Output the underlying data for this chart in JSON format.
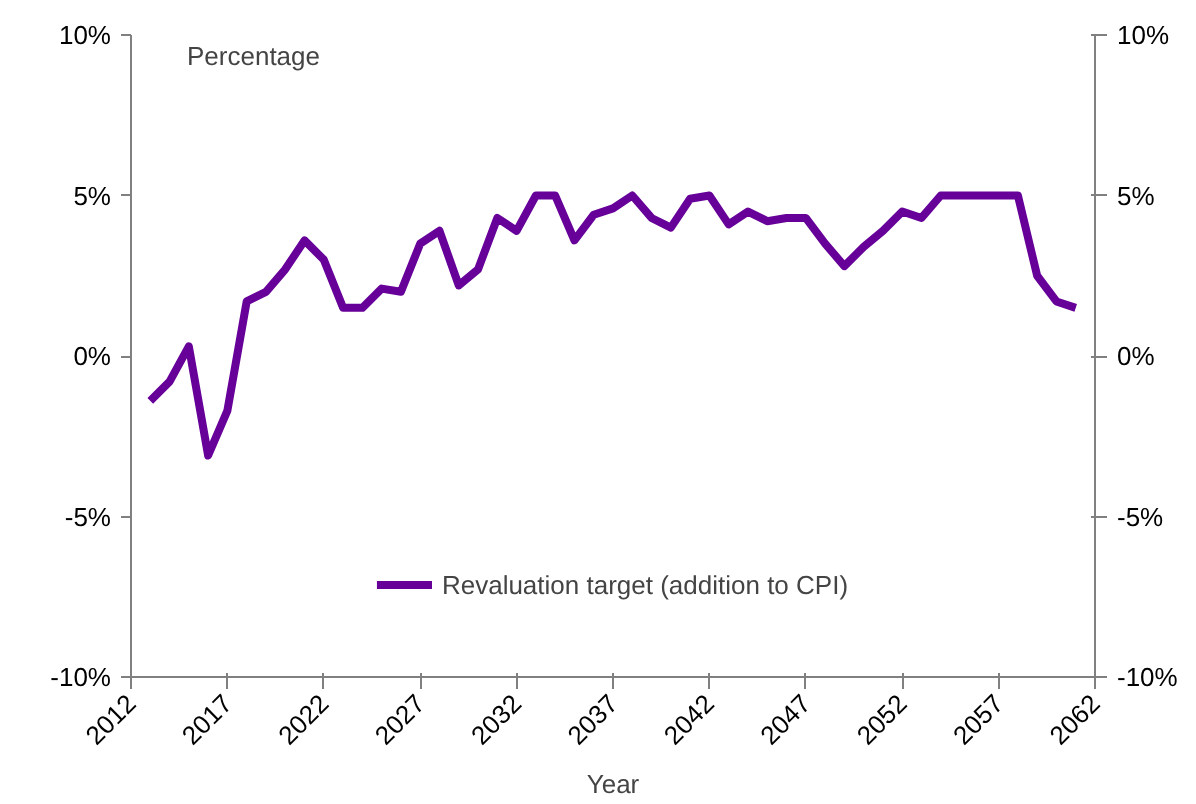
{
  "chart_data": {
    "type": "line",
    "ylabel": "Percentage",
    "xlabel": "Year",
    "x": [
      2013,
      2014,
      2015,
      2016,
      2017,
      2018,
      2019,
      2020,
      2021,
      2022,
      2023,
      2024,
      2025,
      2026,
      2027,
      2028,
      2029,
      2030,
      2031,
      2032,
      2033,
      2034,
      2035,
      2036,
      2037,
      2038,
      2039,
      2040,
      2041,
      2042,
      2043,
      2044,
      2045,
      2046,
      2047,
      2048,
      2049,
      2050,
      2051,
      2052,
      2053,
      2054,
      2055,
      2056,
      2057,
      2058,
      2059,
      2060,
      2061
    ],
    "series": [
      {
        "name": "Revaluation target (addition to CPI)",
        "color": "#660099",
        "values": [
          -1.4,
          -0.8,
          0.3,
          -3.1,
          -1.7,
          1.7,
          2.0,
          2.7,
          3.6,
          3.0,
          1.5,
          1.5,
          2.1,
          2.0,
          3.5,
          3.9,
          2.2,
          2.7,
          4.3,
          3.9,
          5.0,
          5.0,
          3.6,
          4.4,
          4.6,
          5.0,
          4.3,
          4.0,
          4.9,
          5.0,
          4.1,
          4.5,
          4.2,
          4.3,
          4.3,
          3.5,
          2.8,
          3.4,
          3.9,
          4.5,
          4.3,
          5.0,
          5.0,
          5.0,
          5.0,
          5.0,
          2.5,
          1.7,
          1.5
        ]
      }
    ],
    "xlim": [
      2012,
      2062
    ],
    "xticks": [
      2012,
      2017,
      2022,
      2027,
      2032,
      2037,
      2042,
      2047,
      2052,
      2057,
      2062
    ],
    "ylim": [
      -10,
      10
    ],
    "yticks": [
      {
        "value": -10,
        "label": "-10%"
      },
      {
        "value": -5,
        "label": "-5%"
      },
      {
        "value": 0,
        "label": "0%"
      },
      {
        "value": 5,
        "label": "5%"
      },
      {
        "value": 10,
        "label": "10%"
      }
    ],
    "y2lim": [
      -10,
      10
    ],
    "y2ticks": [
      {
        "value": -10,
        "label": "-10%"
      },
      {
        "value": -5,
        "label": "-5%"
      },
      {
        "value": 0,
        "label": "0%"
      },
      {
        "value": 5,
        "label": "5%"
      },
      {
        "value": 10,
        "label": "10%"
      }
    ],
    "legend": "bottom",
    "grid": false,
    "marker": "none",
    "line_style": "solid"
  }
}
